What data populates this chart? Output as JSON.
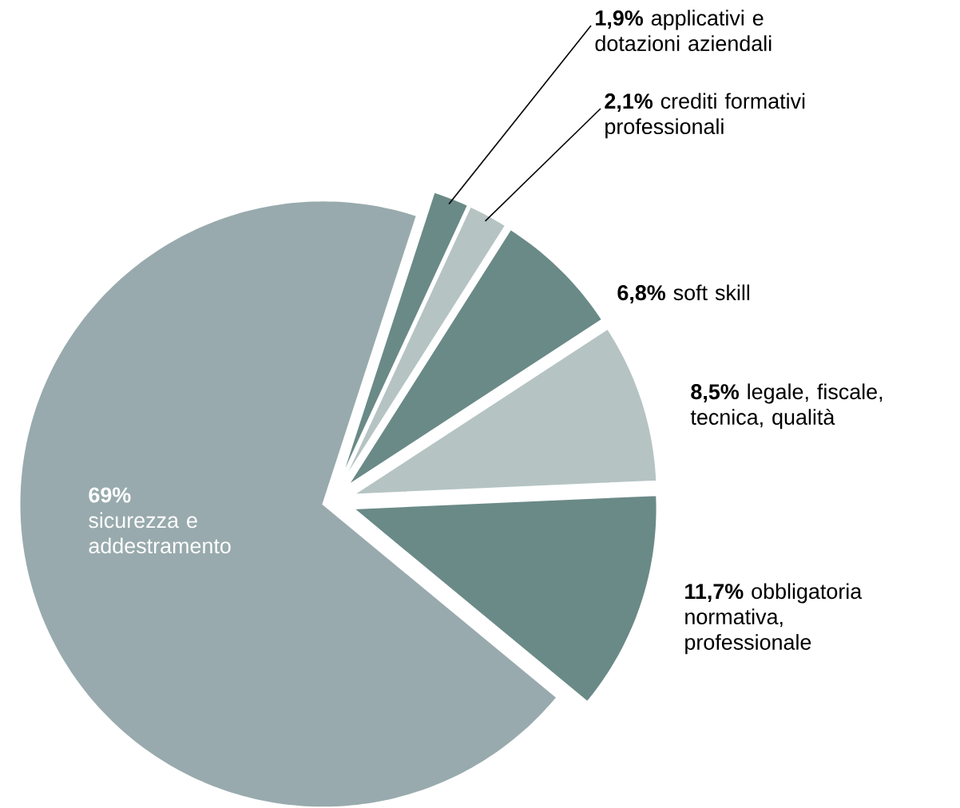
{
  "chart_data": {
    "type": "pie",
    "categories": [
      "applicativi e dotazioni aziendali",
      "crediti formativi professionali",
      "soft skill",
      "legale, fiscale, tecnica, qualità",
      "obbligatoria normativa, professionale",
      "sicurezza e addestramento"
    ],
    "values": [
      1.9,
      2.1,
      6.8,
      8.5,
      11.7,
      69
    ],
    "value_labels": [
      "1,9%",
      "2,1%",
      "6,8%",
      "8,5%",
      "11,7%",
      "69%"
    ],
    "colors": [
      "#6a8a87",
      "#b5c3c3",
      "#6a8a87",
      "#b5c3c3",
      "#6a8a87",
      "#98aaad"
    ]
  }
}
